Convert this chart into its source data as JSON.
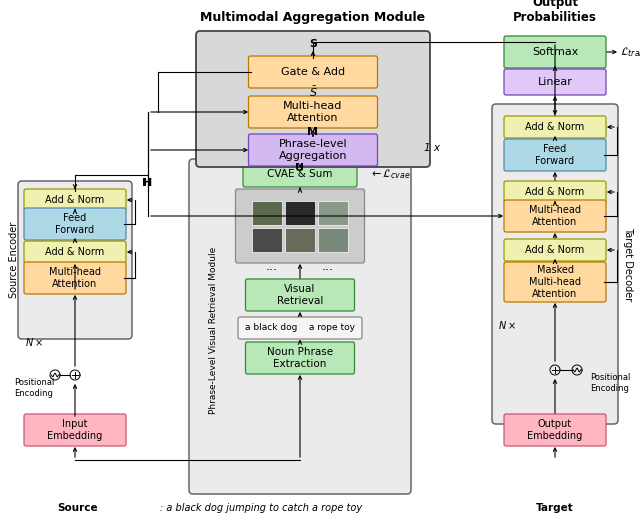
{
  "fig_w": 6.4,
  "fig_h": 5.22,
  "dpi": 100,
  "colors": {
    "add_norm": "#f0f0b0",
    "feed_forward": "#add8e6",
    "multi_head": "#ffd9a0",
    "gate_add": "#ffd9a0",
    "phrase_agg": "#d4b8f0",
    "cvae": "#b8e8b8",
    "visual_retrieval": "#b8e8b8",
    "noun_phrase_box": "#b8e8b8",
    "noun_phrase_text_box": "#f5f5f5",
    "input_embed": "#ffb6c1",
    "output_embed": "#ffb6c1",
    "softmax": "#b8e8b8",
    "linear": "#e0c8f8",
    "masked_mha": "#ffd9a0",
    "bg_gray": "#ebebeb",
    "bg_dark_gray": "#d8d8d8",
    "white": "#ffffff",
    "black": "#000000",
    "edge_gray": "#666666",
    "edge_blue": "#5588aa",
    "edge_green": "#338833",
    "edge_orange": "#bb7700",
    "edge_purple": "#7744bb",
    "edge_pink": "#cc5577",
    "edge_yellow": "#999900"
  },
  "title_mam": "Multimodal Aggregation Module",
  "title_out": "Output\nProbabilities",
  "label_source_encoder": "Source Encoder",
  "label_target_decoder": "Target Decoder",
  "label_phrase_retrieval": "Phrase-Level Visual Retrieval Module",
  "caption_source": "Source",
  "caption_source_text": ": a black dog jumping to catch a rope toy",
  "caption_target": "Target"
}
